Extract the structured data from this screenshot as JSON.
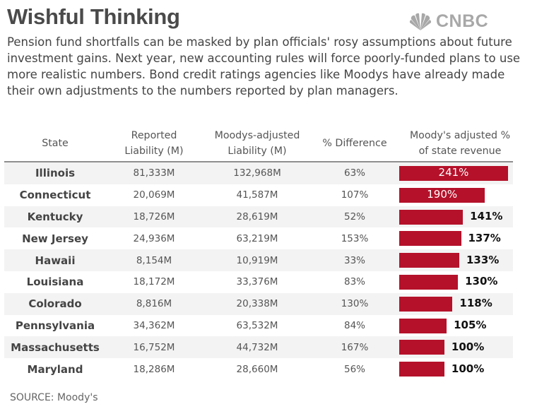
{
  "title": "Wishful Thinking",
  "logo": {
    "text": "CNBC",
    "icon": "nbc-peacock-icon",
    "color": "#a8a8a8"
  },
  "subtitle": "Pension fund shortfalls can be masked by plan officials' rosy assumptions about future investment gains. Next year, new accounting rules will force poorly-funded plans to use more realistic numbers. Bond credit ratings agencies like Moodys have already made their own adjustments to the numbers reported by plan managers.",
  "source": "SOURCE: Moody's",
  "colors": {
    "bar": "#b5112a",
    "row_shade": "#f3f3f3",
    "rule": "#8f8f8f"
  },
  "chart_data": {
    "type": "table",
    "columns": [
      {
        "line1": "State",
        "line2": ""
      },
      {
        "line1": "Reported",
        "line2": "Liability (M)"
      },
      {
        "line1": "Moodys-adjusted",
        "line2": "Liability (M)"
      },
      {
        "line1": "% Difference",
        "line2": ""
      },
      {
        "line1": "Moody's adjusted %",
        "line2": "of state revenue"
      }
    ],
    "rows": [
      {
        "state": "Illinois",
        "reported": "81,333M",
        "adjusted": "132,968M",
        "diff": "63%",
        "revenue_label": "241%",
        "revenue_pct": 241
      },
      {
        "state": "Connecticut",
        "reported": "20,069M",
        "adjusted": "41,587M",
        "diff": "107%",
        "revenue_label": "190%",
        "revenue_pct": 190
      },
      {
        "state": "Kentucky",
        "reported": "18,726M",
        "adjusted": "28,619M",
        "diff": "52%",
        "revenue_label": "141%",
        "revenue_pct": 141
      },
      {
        "state": "New Jersey",
        "reported": "24,936M",
        "adjusted": "63,219M",
        "diff": "153%",
        "revenue_label": "137%",
        "revenue_pct": 137
      },
      {
        "state": "Hawaii",
        "reported": "8,154M",
        "adjusted": "10,919M",
        "diff": "33%",
        "revenue_label": "133%",
        "revenue_pct": 133
      },
      {
        "state": "Louisiana",
        "reported": "18,172M",
        "adjusted": "33,376M",
        "diff": "83%",
        "revenue_label": "130%",
        "revenue_pct": 130
      },
      {
        "state": "Colorado",
        "reported": "8,816M",
        "adjusted": "20,338M",
        "diff": "130%",
        "revenue_label": "118%",
        "revenue_pct": 118
      },
      {
        "state": "Pennsylvania",
        "reported": "34,362M",
        "adjusted": "63,532M",
        "diff": "84%",
        "revenue_label": "105%",
        "revenue_pct": 105
      },
      {
        "state": "Massachusetts",
        "reported": "16,752M",
        "adjusted": "44,732M",
        "diff": "167%",
        "revenue_label": "100%",
        "revenue_pct": 100
      },
      {
        "state": "Maryland",
        "reported": "18,286M",
        "adjusted": "28,660M",
        "diff": "56%",
        "revenue_label": "100%",
        "revenue_pct": 100
      }
    ]
  }
}
